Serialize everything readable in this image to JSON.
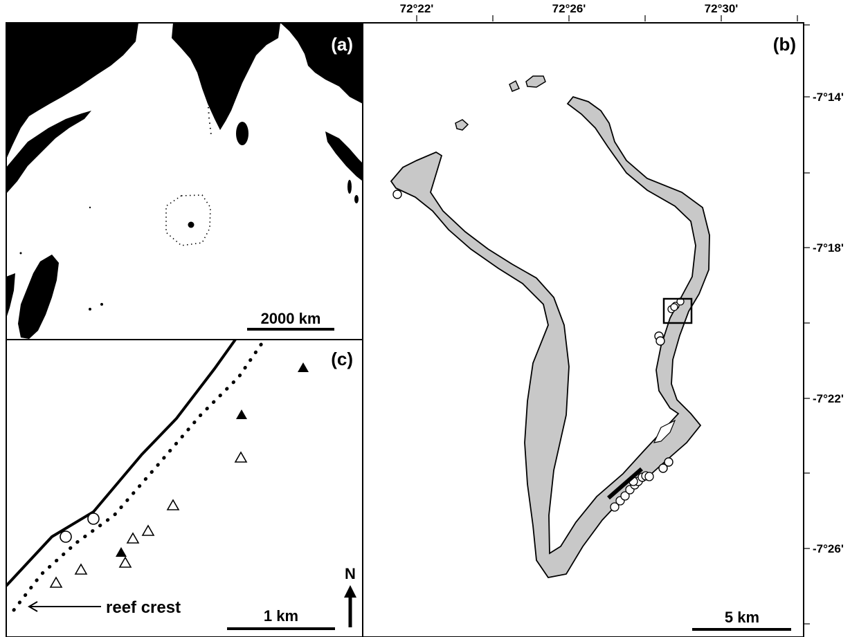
{
  "panels": {
    "a": {
      "label": "(a)",
      "scale_bar": "2000 km"
    },
    "b": {
      "label": "(b)",
      "scale_bar": "5 km",
      "longitude_ticks": [
        "72°22'",
        "72°26'",
        "72°30'"
      ],
      "latitude_ticks": [
        "-7°14'",
        "-7°18'",
        "-7°22'",
        "-7°26'"
      ]
    },
    "c": {
      "label": "(c)",
      "scale_bar": "1 km",
      "north_label": "N",
      "annotation": "reef crest"
    }
  },
  "colors": {
    "land": "#000000",
    "atoll": "#c8c8c8",
    "outline": "#000000",
    "background": "#ffffff"
  },
  "legend_symbols": [
    "open-circle",
    "open-triangle",
    "filled-triangle"
  ]
}
